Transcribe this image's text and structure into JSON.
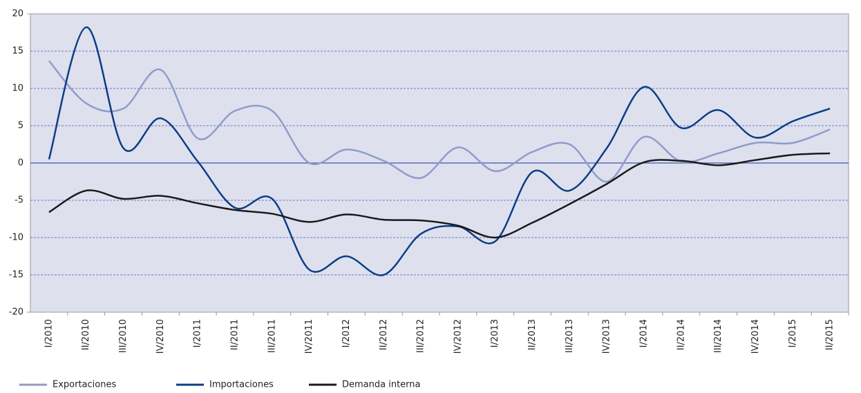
{
  "chart_data": {
    "type": "line",
    "categories": [
      "I/2010",
      "II/2010",
      "III/2010",
      "IV/2010",
      "I/2011",
      "II/2011",
      "III/2011",
      "IV/2011",
      "I/2012",
      "II/2012",
      "III/2012",
      "IV/2012",
      "I/2013",
      "II/2013",
      "III/2013",
      "IV/2013",
      "I/2014",
      "II/2014",
      "III/2014",
      "IV/2014",
      "I/2015",
      "II/2015"
    ],
    "series": [
      {
        "name": "Exportaciones",
        "color": "#8f9cc8",
        "values": [
          13.7,
          8,
          7.3,
          12.5,
          3.3,
          7,
          7,
          0,
          1.8,
          0.3,
          -2,
          2.1,
          -1.1,
          1.5,
          2.5,
          -2.5,
          3.5,
          0.2,
          1.3,
          2.7,
          2.7,
          4.5
        ]
      },
      {
        "name": "Importaciones",
        "color": "#0a3d86",
        "values": [
          0.5,
          18.2,
          2,
          6,
          0.2,
          -6,
          -4.8,
          -14.3,
          -12.5,
          -15,
          -9.5,
          -8.5,
          -10.5,
          -1.2,
          -3.7,
          2,
          10.2,
          4.7,
          7.1,
          3.4,
          5.6,
          7.3
        ]
      },
      {
        "name": "Demanda interna",
        "color": "#1a1a1a",
        "values": [
          -6.6,
          -3.7,
          -4.8,
          -4.4,
          -5.4,
          -6.3,
          -6.8,
          -7.9,
          -6.9,
          -7.6,
          -7.7,
          -8.4,
          -10,
          -8,
          -5.5,
          -2.8,
          0.1,
          0.3,
          -0.3,
          0.4,
          1.1,
          1.3
        ]
      }
    ],
    "ylim": [
      -20,
      20
    ],
    "yticks": [
      -20,
      -15,
      -10,
      -5,
      0,
      5,
      10,
      15,
      20
    ],
    "grid": true,
    "legend": "bottom"
  }
}
